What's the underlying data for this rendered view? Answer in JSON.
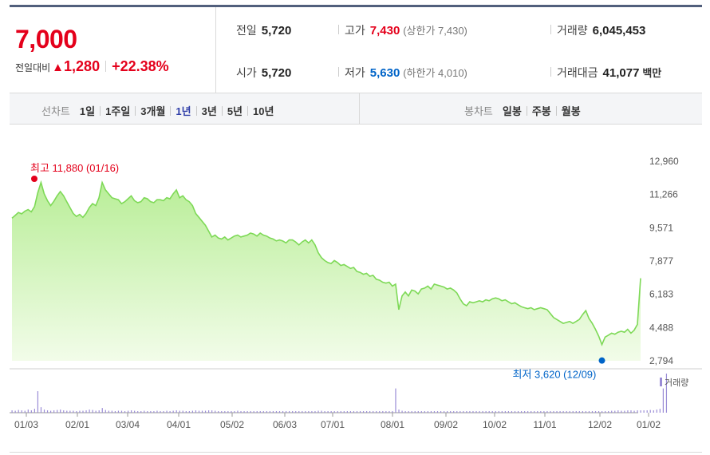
{
  "quote": {
    "price": "7,000",
    "change_label": "전일대비",
    "change_arrow": "▲",
    "change_amount": "1,280",
    "change_percent": "+22.38%",
    "prev_close_label": "전일",
    "prev_close": "5,720",
    "high_label": "고가",
    "high": "7,430",
    "upper_limit": "(상한가 7,430)",
    "volume_label": "거래량",
    "volume": "6,045,453",
    "open_label": "시가",
    "open": "5,720",
    "low_label": "저가",
    "low": "5,630",
    "lower_limit": "(하한가 4,010)",
    "amount_label": "거래대금",
    "amount": "41,077",
    "amount_unit": "백만"
  },
  "periods": {
    "line_label": "선차트",
    "line_items": [
      "1일",
      "1주일",
      "3개월",
      "1년",
      "3년",
      "5년",
      "10년"
    ],
    "selected": "1년",
    "candle_label": "봉차트",
    "candle_items": [
      "일봉",
      "주봉",
      "월봉"
    ]
  },
  "colors": {
    "up": "#e4001b",
    "down": "#0064c8",
    "line": "#7ed957",
    "fill_top": "#b9ee98",
    "fill_bottom": "#f2fce9",
    "volume": "#9a8cd6"
  },
  "chart_data": {
    "type": "area",
    "y_ticks": [
      "12,960",
      "11,266",
      "9,571",
      "7,877",
      "6,183",
      "4,488",
      "2,794"
    ],
    "ylim": [
      2794,
      12960
    ],
    "x_ticks": [
      "01/03",
      "02/01",
      "03/04",
      "04/01",
      "05/02",
      "06/03",
      "07/01",
      "08/01",
      "09/02",
      "10/02",
      "11/01",
      "12/02",
      "01/02"
    ],
    "max_label": "최고 11,880 (01/16)",
    "min_label": "최저 3,620 (12/09)",
    "volume_legend": "거래량",
    "series": [
      {
        "values": [
          10060,
          10200,
          10350,
          10280,
          10420,
          10500,
          10380,
          10650,
          11350,
          11880,
          11300,
          10950,
          10700,
          10920,
          11200,
          11420,
          11200,
          10900,
          10600,
          10300,
          10150,
          10250,
          10100,
          10300,
          10600,
          10800,
          10700,
          11100,
          11880,
          11500,
          11300,
          11100,
          11050,
          11000,
          10800,
          10900,
          11050,
          11200,
          10950,
          10850,
          10900,
          11100,
          11050,
          10900,
          10850,
          11000,
          11000,
          10950,
          11100,
          11050,
          11300,
          11500,
          11100,
          11200,
          11000,
          10900,
          10700,
          10300,
          10100,
          9900,
          9700,
          9400,
          9100,
          9200,
          9050,
          9000,
          9100,
          8950,
          9050,
          9150,
          9200,
          9100,
          9150,
          9200,
          9300,
          9250,
          9150,
          9300,
          9200,
          9150,
          9050,
          9000,
          8900,
          8950,
          8900,
          8800,
          8950,
          8950,
          8850,
          8700,
          8850,
          8950,
          8800,
          8950,
          8700,
          8300,
          8050,
          7900,
          7800,
          7750,
          7900,
          7800,
          7650,
          7700,
          7600,
          7500,
          7550,
          7350,
          7300,
          7200,
          7250,
          7100,
          7150,
          6950,
          6900,
          6800,
          6750,
          6800,
          6600,
          6700,
          5400,
          6100,
          6300,
          6100,
          6400,
          6350,
          6200,
          6450,
          6500,
          6600,
          6450,
          6700,
          6650,
          6600,
          6550,
          6450,
          6500,
          6400,
          6250,
          5950,
          5700,
          5600,
          5800,
          5750,
          5800,
          5850,
          5800,
          5900,
          5850,
          5950,
          6000,
          5950,
          5850,
          5900,
          5800,
          5700,
          5750,
          5650,
          5550,
          5500,
          5450,
          5500,
          5400,
          5450,
          5500,
          5450,
          5400,
          5200,
          5000,
          4900,
          4800,
          4700,
          4750,
          4800,
          4700,
          4800,
          4900,
          5150,
          5350,
          4950,
          4700,
          4400,
          4050,
          3620,
          4000,
          4100,
          4200,
          4150,
          4250,
          4300,
          4250,
          4400,
          4200,
          4350,
          4650,
          7000
        ]
      }
    ],
    "volume": [
      0.06,
      0.05,
      0.07,
      0.06,
      0.05,
      0.08,
      0.06,
      0.1,
      0.55,
      0.14,
      0.08,
      0.06,
      0.05,
      0.06,
      0.07,
      0.08,
      0.06,
      0.05,
      0.05,
      0.05,
      0.04,
      0.05,
      0.05,
      0.06,
      0.08,
      0.07,
      0.05,
      0.06,
      0.12,
      0.07,
      0.05,
      0.05,
      0.04,
      0.05,
      0.05,
      0.04,
      0.05,
      0.06,
      0.05,
      0.04,
      0.04,
      0.05,
      0.04,
      0.04,
      0.04,
      0.05,
      0.04,
      0.04,
      0.05,
      0.04,
      0.05,
      0.06,
      0.05,
      0.05,
      0.04,
      0.04,
      0.05,
      0.06,
      0.05,
      0.05,
      0.05,
      0.06,
      0.06,
      0.05,
      0.04,
      0.04,
      0.04,
      0.04,
      0.04,
      0.04,
      0.05,
      0.04,
      0.04,
      0.04,
      0.04,
      0.04,
      0.04,
      0.04,
      0.04,
      0.04,
      0.04,
      0.04,
      0.04,
      0.04,
      0.04,
      0.04,
      0.04,
      0.04,
      0.04,
      0.04,
      0.04,
      0.04,
      0.04,
      0.04,
      0.04,
      0.05,
      0.05,
      0.04,
      0.04,
      0.04,
      0.04,
      0.04,
      0.04,
      0.04,
      0.04,
      0.04,
      0.04,
      0.04,
      0.04,
      0.04,
      0.04,
      0.04,
      0.04,
      0.04,
      0.04,
      0.04,
      0.04,
      0.04,
      0.04,
      0.62,
      0.08,
      0.05,
      0.04,
      0.04,
      0.04,
      0.04,
      0.04,
      0.04,
      0.04,
      0.04,
      0.04,
      0.04,
      0.04,
      0.04,
      0.04,
      0.04,
      0.04,
      0.04,
      0.04,
      0.04,
      0.04,
      0.04,
      0.04,
      0.04,
      0.04,
      0.04,
      0.04,
      0.04,
      0.04,
      0.04,
      0.04,
      0.04,
      0.04,
      0.04,
      0.04,
      0.04,
      0.04,
      0.04,
      0.04,
      0.04,
      0.04,
      0.04,
      0.04,
      0.04,
      0.04,
      0.04,
      0.04,
      0.04,
      0.04,
      0.04,
      0.04,
      0.04,
      0.04,
      0.04,
      0.04,
      0.04,
      0.04,
      0.04,
      0.04,
      0.04,
      0.04,
      0.04,
      0.04,
      0.04,
      0.04,
      0.04,
      0.05,
      0.05,
      0.06,
      0.05,
      0.05,
      0.06,
      0.06,
      0.05,
      0.06,
      0.06,
      0.06,
      0.06,
      0.07,
      0.06,
      0.08,
      0.1,
      0.62,
      1.0
    ]
  }
}
